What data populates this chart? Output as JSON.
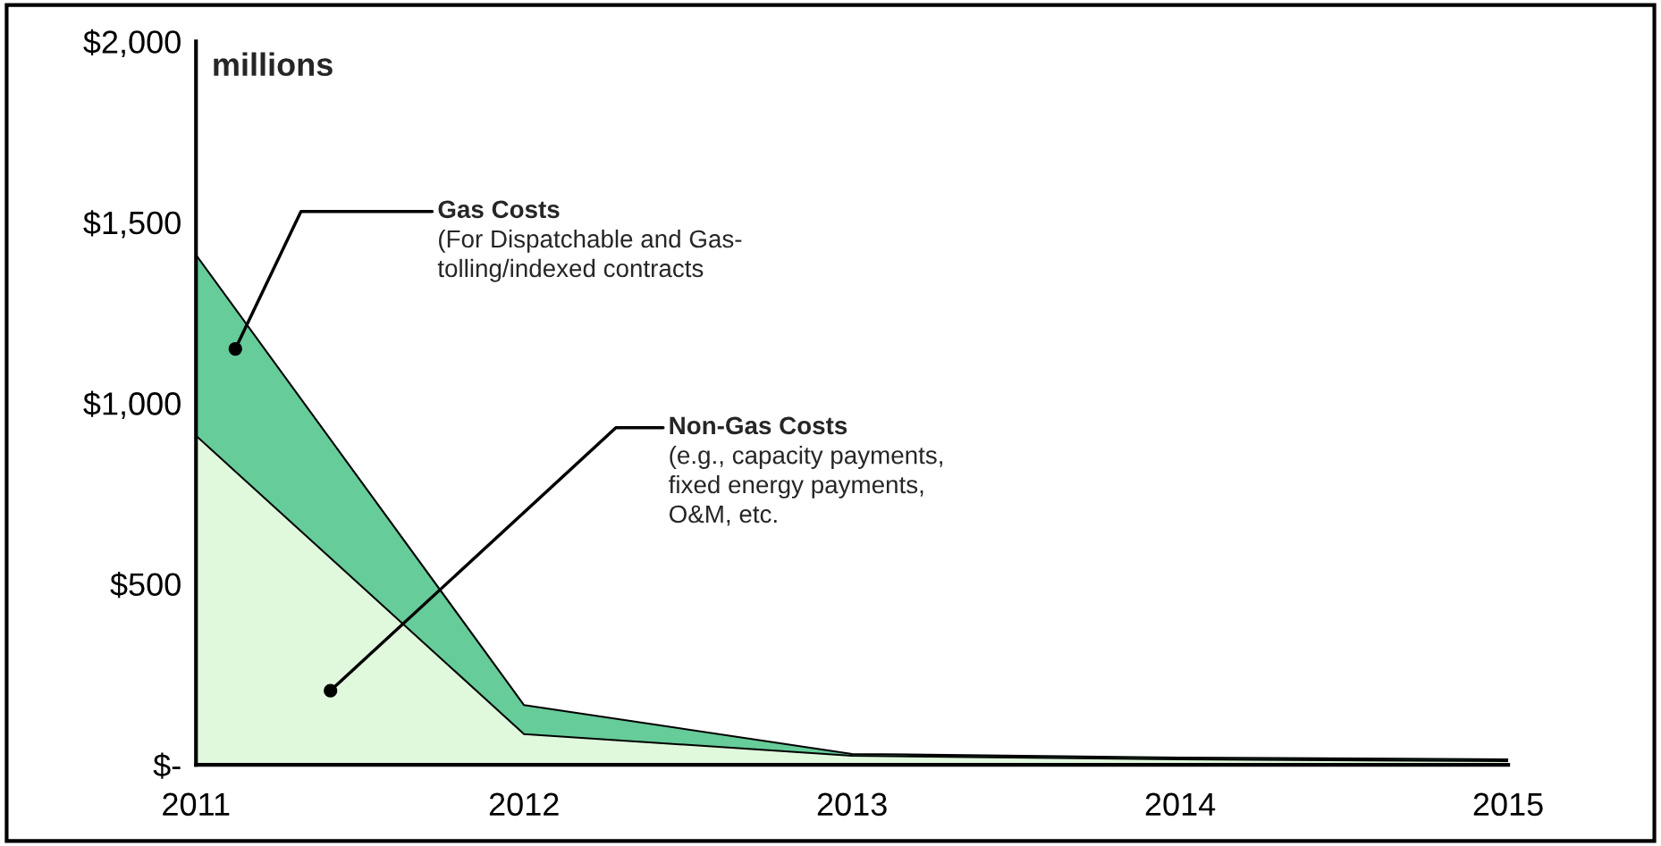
{
  "chart_data": {
    "type": "area",
    "stacked": true,
    "x": [
      2011,
      2012,
      2013,
      2014,
      2015
    ],
    "series": [
      {
        "color": "#e0f8dc",
        "values": [
          910,
          85,
          25,
          15,
          10
        ]
      },
      {
        "color": "#66cc99",
        "values": [
          500,
          80,
          5,
          5,
          5
        ]
      }
    ],
    "xlim": [
      2011,
      2015
    ],
    "xticks": [
      2011,
      2012,
      2013,
      2014,
      2015
    ],
    "ylim": [
      0,
      2000
    ],
    "yticks": [
      {
        "value": 0,
        "label": "$-"
      },
      {
        "value": 500,
        "label": "$500"
      },
      {
        "value": 1000,
        "label": "$1,000"
      },
      {
        "value": 1500,
        "label": "$1,500"
      },
      {
        "value": 2000,
        "label": "$2,000"
      }
    ],
    "grid": false,
    "legend": false,
    "annotations": [
      "millions",
      {
        "text": "Gas Costs\n(For Dispatchable and Gas-\ntolling/indexed contracts",
        "x": 2011.12,
        "y": 1150
      },
      {
        "text": "Non-Gas Costs\n(e.g., capacity payments,\nfixed energy payments,\nO&M, etc.",
        "x": 2011.41,
        "y": 205
      }
    ]
  }
}
